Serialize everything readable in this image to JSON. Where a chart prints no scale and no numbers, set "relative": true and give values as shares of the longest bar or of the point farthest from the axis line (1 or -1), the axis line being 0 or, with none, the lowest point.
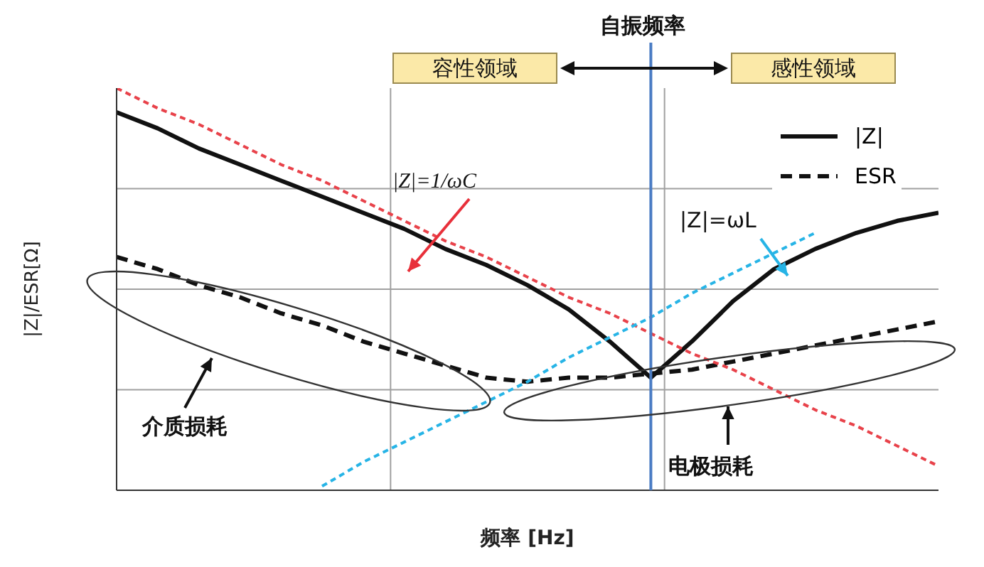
{
  "chart_data": {
    "type": "line",
    "relative": true,
    "xlabel": "频率 [Hz]",
    "ylabel": "|Z|/ESR[Ω]",
    "categories": [
      null,
      null,
      null,
      null,
      null,
      null,
      null,
      null,
      null,
      null,
      null,
      null,
      null,
      null,
      null,
      null,
      null,
      null,
      null,
      null,
      null
    ],
    "series": [
      {
        "name": "|Z|",
        "color": "#111111",
        "line_style": "solid",
        "values": [
          0.94,
          0.9,
          0.85,
          0.81,
          0.77,
          0.73,
          0.69,
          0.65,
          0.6,
          0.56,
          0.51,
          0.45,
          0.37,
          0.28,
          0.37,
          0.47,
          0.55,
          0.6,
          0.64,
          0.67,
          0.69
        ]
      },
      {
        "name": "ESR",
        "color": "#111111",
        "line_style": "dashed",
        "values": [
          0.58,
          0.55,
          0.51,
          0.48,
          0.44,
          0.41,
          0.37,
          0.34,
          0.31,
          0.28,
          0.27,
          0.28,
          0.28,
          0.29,
          0.3,
          0.32,
          0.34,
          0.36,
          0.38,
          0.4,
          0.42
        ]
      },
      {
        "color": "#e8424a",
        "line_style": "dashed",
        "values": [
          1,
          0.95,
          0.91,
          0.86,
          0.81,
          0.77,
          0.72,
          0.67,
          0.62,
          0.58,
          0.53,
          0.48,
          0.44,
          0.39,
          0.34,
          0.3,
          0.25,
          0.2,
          0.16,
          0.11,
          0.06
        ]
      },
      {
        "color": "#27b4e6",
        "line_style": "dashed",
        "values": [
          null,
          null,
          null,
          null,
          null,
          0.01,
          0.07,
          0.12,
          0.17,
          0.22,
          0.27,
          0.33,
          0.38,
          0.43,
          0.49,
          0.54,
          0.59,
          0.64,
          null,
          null,
          null
        ]
      }
    ],
    "annotations": [
      "自振频率",
      "容性领域",
      "感性领域",
      "|Z|=1/ωC",
      "|Z|=ωL",
      "介质损耗",
      "电极损耗"
    ],
    "grid": true,
    "legend": "top right",
    "marker": "none"
  }
}
